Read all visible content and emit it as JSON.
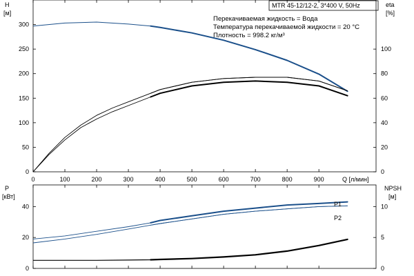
{
  "header": {
    "model": "MTR 45-12/12-2, 3*400 V, 50Hz",
    "info_lines": [
      "Перекачиваемая жидкость = Вода",
      "Температура перекачиваемой жидкости = 20 °C",
      "Плотность = 998.2 кг/м³"
    ]
  },
  "colors": {
    "primary": "#1a4f8a",
    "black": "#000000",
    "axis": "#000000"
  },
  "chart_data": [
    {
      "type": "line",
      "panel": "head-efficiency",
      "xlabel": "Q [л/мин]",
      "ylabel_left": [
        "H",
        "[м]"
      ],
      "ylabel_right": [
        "eta",
        "[%]"
      ],
      "x_ticks": [
        0,
        100,
        200,
        300,
        400,
        500,
        600,
        700,
        800,
        900
      ],
      "xlim": [
        0,
        1080
      ],
      "y_left_ticks": [
        0,
        50,
        100,
        150,
        200,
        250,
        300
      ],
      "ylim_left": [
        0,
        350
      ],
      "y_right_ticks": [
        0,
        20,
        40,
        60,
        80,
        100
      ],
      "ylim_right": [
        0,
        140
      ],
      "series": [
        {
          "axis": "left",
          "x": [
            0,
            100,
            200,
            300,
            370,
            400,
            500,
            600,
            700,
            800,
            900,
            990
          ],
          "y": [
            297,
            303,
            305,
            301,
            297,
            294,
            283,
            268,
            249,
            227,
            199,
            164
          ]
        },
        {
          "axis": "right",
          "x": [
            0,
            50,
            100,
            150,
            200,
            250,
            300,
            370,
            400,
            500,
            600,
            700,
            800,
            900,
            990
          ],
          "y": [
            0,
            15,
            28,
            38,
            46,
            52,
            57,
            64,
            67,
            73,
            76,
            77,
            77,
            74,
            66
          ]
        },
        {
          "axis": "right",
          "x": [
            0,
            50,
            100,
            150,
            200,
            250,
            300,
            370,
            400,
            500,
            600,
            700,
            800,
            900,
            990
          ],
          "y": [
            0,
            14,
            26,
            36,
            43,
            49,
            54,
            61,
            64,
            70,
            73,
            74,
            73,
            70,
            62
          ]
        }
      ]
    },
    {
      "type": "line",
      "panel": "power-npsh",
      "ylabel_left": [
        "P",
        "[кВт]"
      ],
      "ylabel_right": [
        "NPSH",
        "[м]"
      ],
      "xlim": [
        0,
        1080
      ],
      "y_left_ticks": [
        0,
        20,
        40
      ],
      "ylim_left": [
        0,
        54
      ],
      "y_right_ticks": [
        0,
        5,
        10
      ],
      "ylim_right": [
        0,
        13.5
      ],
      "series": [
        {
          "name": "P1",
          "axis": "left",
          "x": [
            0,
            100,
            200,
            300,
            370,
            400,
            500,
            600,
            700,
            800,
            900,
            990
          ],
          "y": [
            19,
            21,
            24,
            27,
            29.5,
            31,
            34,
            37,
            39,
            41,
            42,
            43
          ]
        },
        {
          "name": "P2",
          "axis": "left",
          "x": [
            0,
            100,
            200,
            300,
            370,
            400,
            500,
            600,
            700,
            800,
            900,
            990
          ],
          "y": [
            16.5,
            19,
            22,
            25.5,
            28,
            29,
            32,
            35,
            37,
            38.5,
            40,
            40.5
          ]
        },
        {
          "axis": "right",
          "x": [
            0,
            100,
            200,
            300,
            370,
            400,
            500,
            600,
            700,
            800,
            900,
            990
          ],
          "y": [
            1.3,
            1.3,
            1.3,
            1.35,
            1.4,
            1.45,
            1.6,
            1.85,
            2.2,
            2.8,
            3.7,
            4.7
          ]
        }
      ]
    }
  ]
}
